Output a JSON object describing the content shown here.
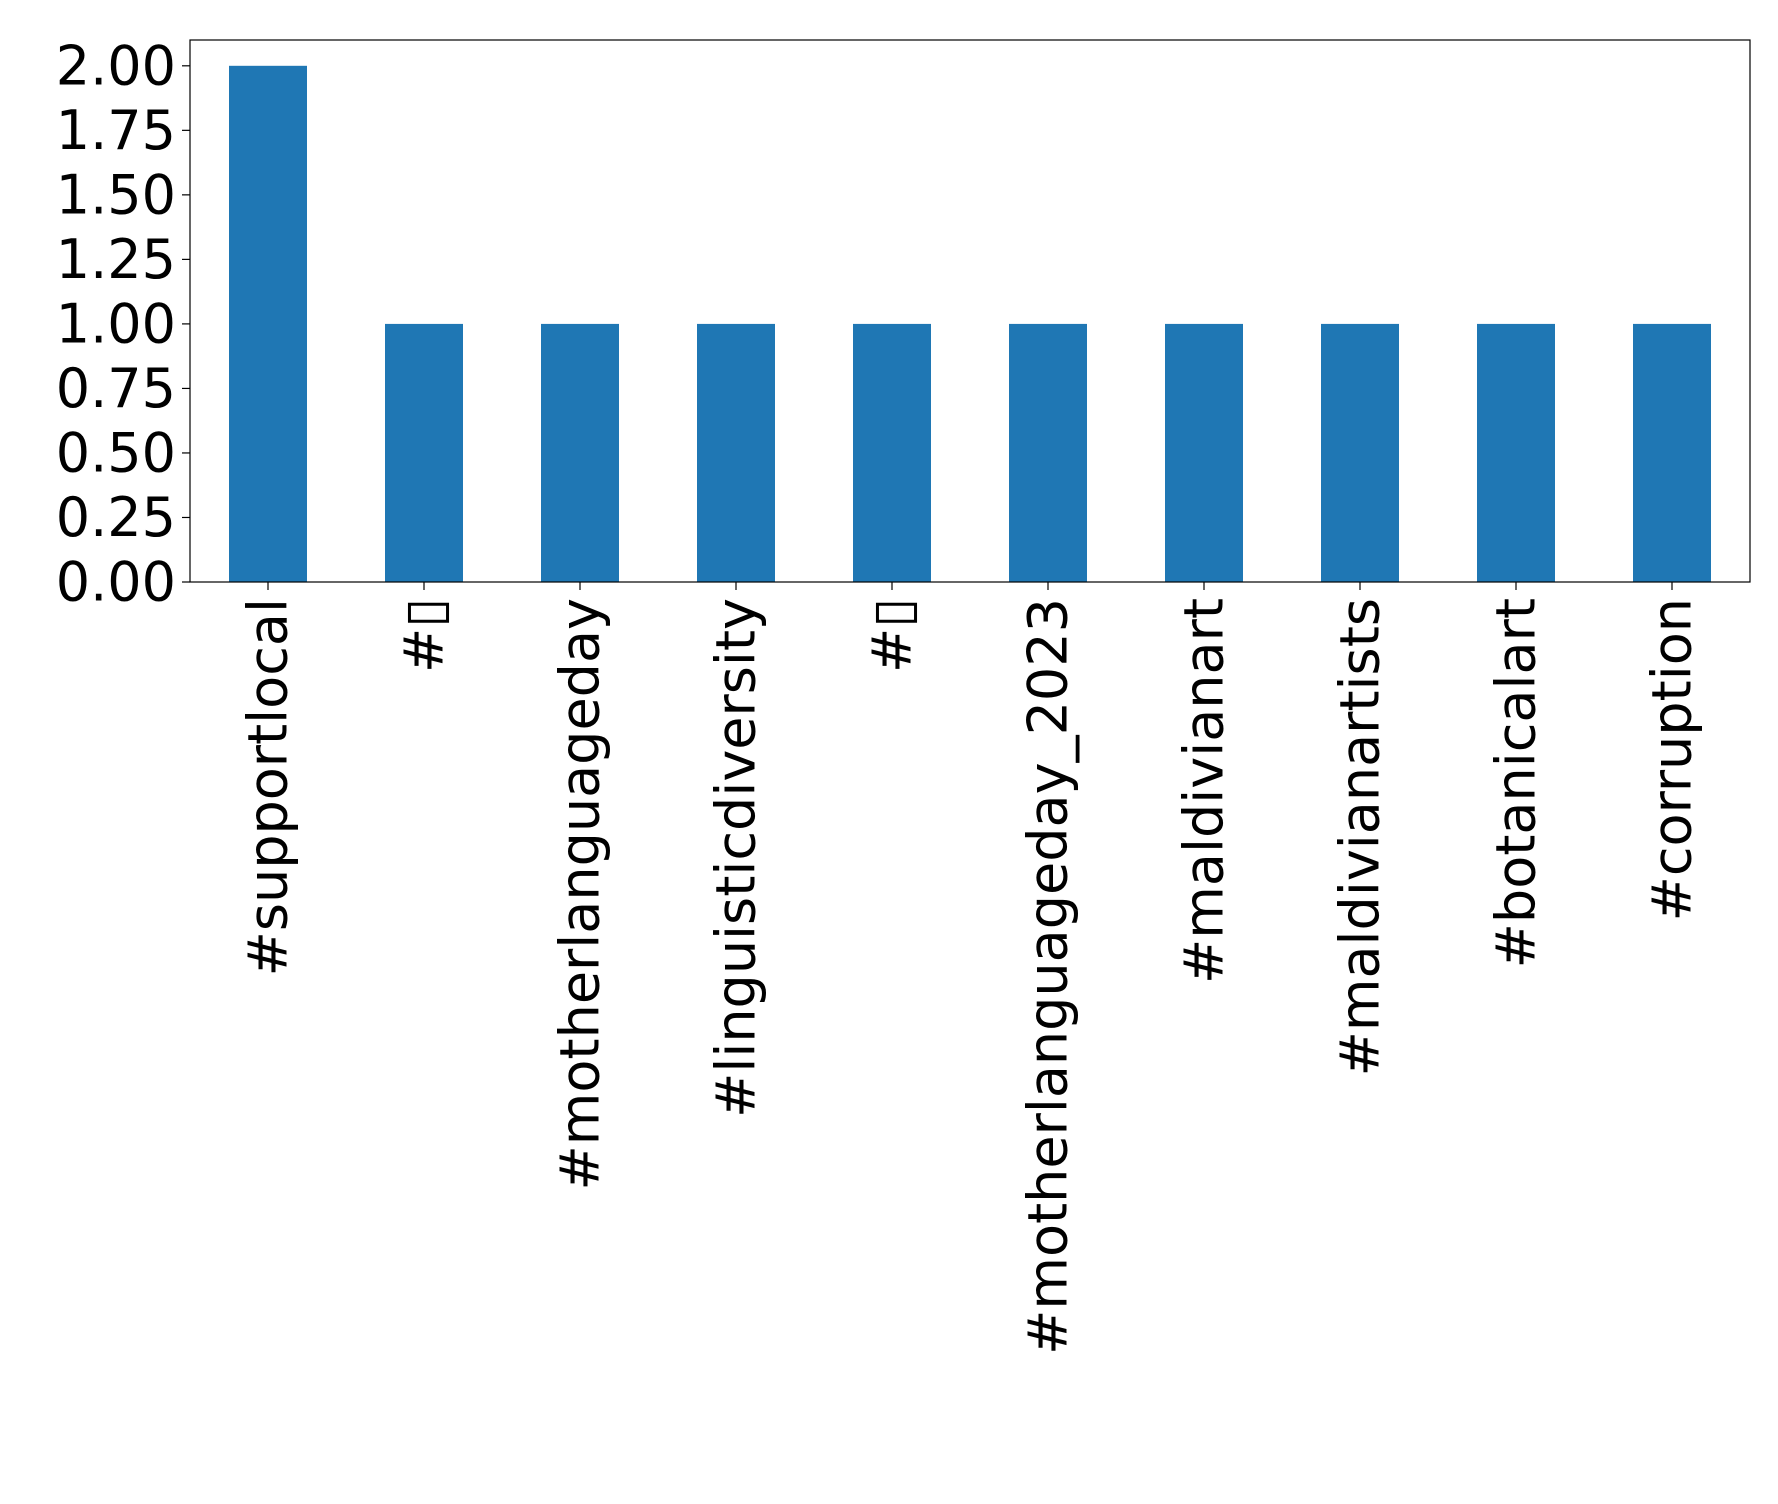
{
  "chart_data": {
    "type": "bar",
    "categories": [
      "#supportlocal",
      "#▯",
      "#motherlanguageday",
      "#linguisticdiversity",
      "#▯",
      "#motherlanguageday_2023",
      "#maldivianart",
      "#maldivianartists",
      "#botanicalart",
      "#corruption"
    ],
    "values": [
      2,
      1,
      1,
      1,
      1,
      1,
      1,
      1,
      1,
      1
    ],
    "ylim": [
      0,
      2.1
    ],
    "yticks": [
      "0.00",
      "0.25",
      "0.50",
      "0.75",
      "1.00",
      "1.25",
      "1.50",
      "1.75",
      "2.00"
    ],
    "ytick_values": [
      0,
      0.25,
      0.5,
      0.75,
      1.0,
      1.25,
      1.5,
      1.75,
      2.0
    ],
    "bar_color": "#1f77b4",
    "grid": false,
    "legend": "none"
  }
}
